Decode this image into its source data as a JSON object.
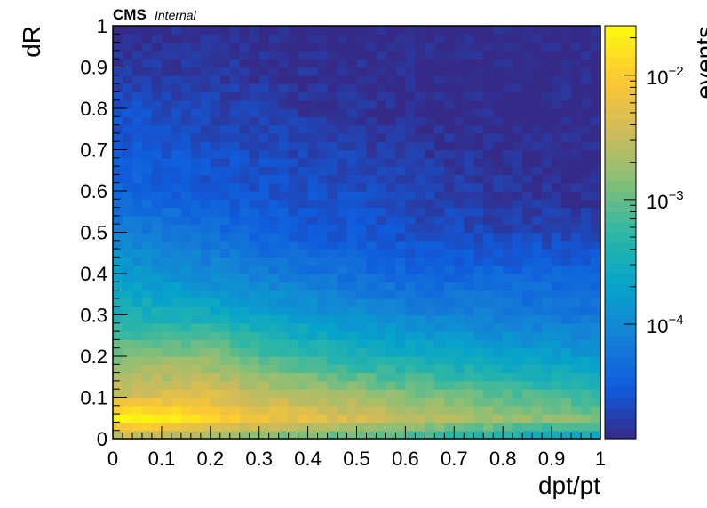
{
  "chart_data": {
    "type": "heatmap",
    "title": "",
    "label_main": "CMS",
    "label_sub": "Internal",
    "xlabel": "dpt/pt",
    "ylabel": "dR",
    "zlabel": "events",
    "xlim": [
      0,
      1
    ],
    "ylim": [
      0,
      1
    ],
    "x_ticks": [
      "0",
      "0.1",
      "0.2",
      "0.3",
      "0.4",
      "0.5",
      "0.6",
      "0.7",
      "0.8",
      "0.9",
      "1"
    ],
    "y_ticks": [
      "0",
      "0.1",
      "0.2",
      "0.3",
      "0.4",
      "0.5",
      "0.6",
      "0.7",
      "0.8",
      "0.9",
      "1"
    ],
    "z_scale": "log",
    "z_range": [
      1.2e-05,
      0.025
    ],
    "z_ticks": [
      {
        "value": 0.01,
        "mantissa": "10",
        "exponent": "−2"
      },
      {
        "value": 0.001,
        "mantissa": "10",
        "exponent": "−3"
      },
      {
        "value": 0.0001,
        "mantissa": "10",
        "exponent": "−4"
      }
    ],
    "colormap": "parula",
    "colors": [
      "#352a87",
      "#0f5cdd",
      "#1481d6",
      "#06a4ca",
      "#2eb7a4",
      "#87bf77",
      "#d1bb59",
      "#fec832",
      "#f9fb0e"
    ],
    "bins_x": 50,
    "bins_y": 50,
    "grid": false,
    "value_rows_bottom_to_top": [
      {
        "dR_bin": "0.00-0.02",
        "dptpt": [
          0.0,
          0.1,
          0.2,
          0.3,
          0.5,
          0.7,
          0.9,
          1.0
        ],
        "events": [
          0.0035,
          0.003,
          0.0022,
          0.0016,
          0.001,
          0.0006,
          0.0003,
          0.0003
        ]
      },
      {
        "dR_bin": "0.04-0.06",
        "dptpt": [
          0.0,
          0.1,
          0.2,
          0.3,
          0.5,
          0.7,
          0.9,
          1.0
        ],
        "events": [
          0.025,
          0.025,
          0.012,
          0.007,
          0.004,
          0.0025,
          0.0015,
          0.0012
        ]
      },
      {
        "dR_bin": "0.10",
        "dptpt": [
          0.0,
          0.1,
          0.2,
          0.3,
          0.5,
          0.7,
          0.9,
          1.0
        ],
        "events": [
          0.004,
          0.005,
          0.005,
          0.0035,
          0.002,
          0.0012,
          0.0008,
          0.0006
        ]
      },
      {
        "dR_bin": "0.20",
        "dptpt": [
          0.0,
          0.1,
          0.2,
          0.3,
          0.5,
          0.7,
          0.9,
          1.0
        ],
        "events": [
          0.0012,
          0.0015,
          0.0015,
          0.0008,
          0.0004,
          0.00025,
          0.00018,
          0.00015
        ]
      },
      {
        "dR_bin": "0.30",
        "dptpt": [
          0.0,
          0.2,
          0.4,
          0.6,
          0.8,
          1.0
        ],
        "events": [
          0.0004,
          0.0003,
          0.00015,
          9e-05,
          7e-05,
          6e-05
        ]
      },
      {
        "dR_bin": "0.40",
        "dptpt": [
          0.0,
          0.2,
          0.4,
          0.6,
          0.8,
          1.0
        ],
        "events": [
          0.00018,
          0.0001,
          6e-05,
          4e-05,
          4e-05,
          4e-05
        ]
      },
      {
        "dR_bin": "0.50",
        "dptpt": [
          0.0,
          0.2,
          0.4,
          0.6,
          0.8,
          1.0
        ],
        "events": [
          8e-05,
          5e-05,
          3e-05,
          2.5e-05,
          2e-05,
          2e-05
        ]
      },
      {
        "dR_bin": "0.60",
        "dptpt": [
          0.0,
          0.2,
          0.4,
          0.6,
          0.8,
          1.0
        ],
        "events": [
          4e-05,
          3e-05,
          2.5e-05,
          2e-05,
          1.5e-05,
          1.2e-05
        ]
      },
      {
        "dR_bin": "0.80",
        "dptpt": [
          0.0,
          0.2,
          0.4,
          0.6,
          0.8,
          1.0
        ],
        "events": [
          2.5e-05,
          2e-05,
          1.5e-05,
          1.3e-05,
          1.2e-05,
          1.2e-05
        ]
      },
      {
        "dR_bin": "0.96",
        "dptpt": [
          0.0,
          0.2,
          0.4,
          0.6,
          0.8,
          1.0
        ],
        "events": [
          1.3e-05,
          1.3e-05,
          1.2e-05,
          1.2e-05,
          1.2e-05,
          1.2e-05
        ]
      }
    ]
  }
}
